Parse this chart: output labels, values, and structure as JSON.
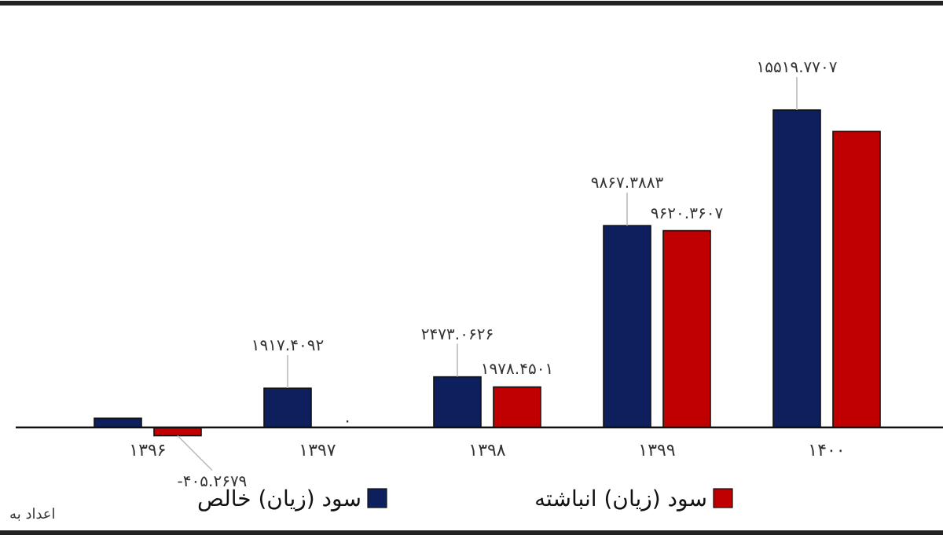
{
  "chart_data": {
    "type": "bar",
    "categories": [
      "۱۳۹۶",
      "۱۳۹۷",
      "۱۳۹۸",
      "۱۳۹۹",
      "۱۴۰۰"
    ],
    "series": [
      {
        "name": "سود (زیان) خالص",
        "color": "#0d1f5c",
        "values": [
          450,
          1917.4092,
          2473.0626,
          9867.3883,
          15519.7707
        ],
        "value_labels": [
          null,
          "۱۹۱۷.۴۰۹۲",
          "۲۴۷۳.۰۶۲۶",
          "۹۸۶۷.۳۸۸۳",
          "۱۵۵۱۹.۷۷۰۷"
        ]
      },
      {
        "name": "سود (زیان) انباشته",
        "color": "#c00000",
        "values": [
          -405.2679,
          0,
          1978.4501,
          9620.3607,
          14470
        ],
        "value_labels": [
          "-۴۰۵.۲۶۷۹",
          "۰",
          "۱۹۷۸.۴۵۰۱",
          "۹۶۲۰.۳۶۰۷",
          null
        ]
      }
    ],
    "legend": "bottom",
    "annotations": [
      "اعداد به"
    ]
  }
}
